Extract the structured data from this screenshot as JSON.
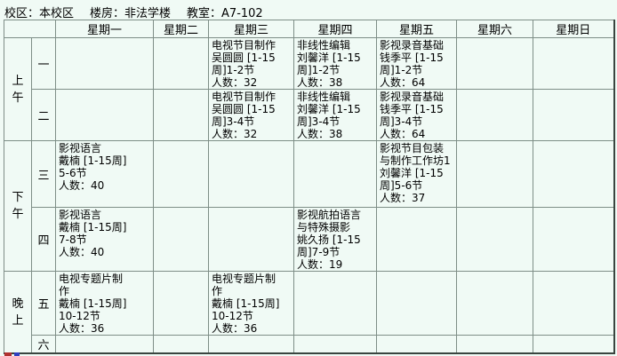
{
  "info": {
    "campus": "校区：本校区",
    "building": "楼房：非法学楼",
    "room": "教室：A7-102"
  },
  "schedule": {
    "day_headers": [
      "星期一",
      "星期二",
      "星期三",
      "星期四",
      "星期五",
      "星期六",
      "星期日"
    ],
    "periods": [
      {
        "label": "上午",
        "sessions": [
          {
            "label": "一",
            "cells": [
              null,
              null,
              {
                "lines": [
                  "电视节目制作",
                  "吴圆圆 [1-15",
                  "周]1-2节",
                  "人数：32"
                ]
              },
              {
                "lines": [
                  "非线性编辑",
                  "刘馨洋 [1-15",
                  "周]1-2节",
                  "人数：38"
                ]
              },
              {
                "lines": [
                  "影视录音基础",
                  "钱季平 [1-15",
                  "周]1-2节",
                  "人数：64"
                ]
              },
              null,
              null
            ]
          },
          {
            "label": "二",
            "cells": [
              null,
              null,
              {
                "lines": [
                  "电视节目制作",
                  "吴圆圆 [1-15",
                  "周]3-4节",
                  "人数：32"
                ]
              },
              {
                "lines": [
                  "非线性编辑",
                  "刘馨洋 [1-15",
                  "周]3-4节",
                  "人数：38"
                ]
              },
              {
                "lines": [
                  "影视录音基础",
                  "钱季平 [1-15",
                  "周]3-4节",
                  "人数：64"
                ]
              },
              null,
              null
            ]
          }
        ]
      },
      {
        "label": "下午",
        "sessions": [
          {
            "label": "三",
            "cells": [
              {
                "lines": [
                  "影视语言",
                  "戴楠 [1-15周]",
                  "5-6节",
                  "人数：40"
                ]
              },
              null,
              null,
              null,
              {
                "lines": [
                  "影视节目包装",
                  "与制作工作坊1",
                  "刘馨洋 [1-15",
                  "周]5-6节",
                  "人数：37"
                ]
              },
              null,
              null
            ]
          },
          {
            "label": "四",
            "cells": [
              {
                "lines": [
                  "影视语言",
                  "戴楠 [1-15周]",
                  "7-8节",
                  "人数：40"
                ]
              },
              null,
              null,
              {
                "lines": [
                  "影视航拍语言",
                  "与特殊摄影",
                  "姚久扬 [1-15",
                  "周]7-9节",
                  "人数：19"
                ]
              },
              null,
              null,
              null
            ]
          }
        ]
      },
      {
        "label": "晚上",
        "sessions": [
          {
            "label": "五",
            "cells": [
              {
                "lines": [
                  "电视专题片制",
                  "作",
                  "戴楠 [1-15周]",
                  "10-12节",
                  "人数：36"
                ]
              },
              null,
              {
                "lines": [
                  "电视专题片制",
                  "作",
                  "戴楠 [1-15周]",
                  "10-12节",
                  "人数：36"
                ]
              },
              null,
              null,
              null,
              null
            ]
          },
          {
            "label": "六",
            "cells": [
              null,
              null,
              null,
              null,
              null,
              null,
              null
            ]
          }
        ]
      }
    ]
  },
  "colors": {
    "background": "#f0faf5",
    "grid_line": "#7e8e87",
    "outer_border": "#39453f",
    "text": "#000000",
    "artifact_red": "#b03030",
    "artifact_blue": "#3040c0"
  }
}
